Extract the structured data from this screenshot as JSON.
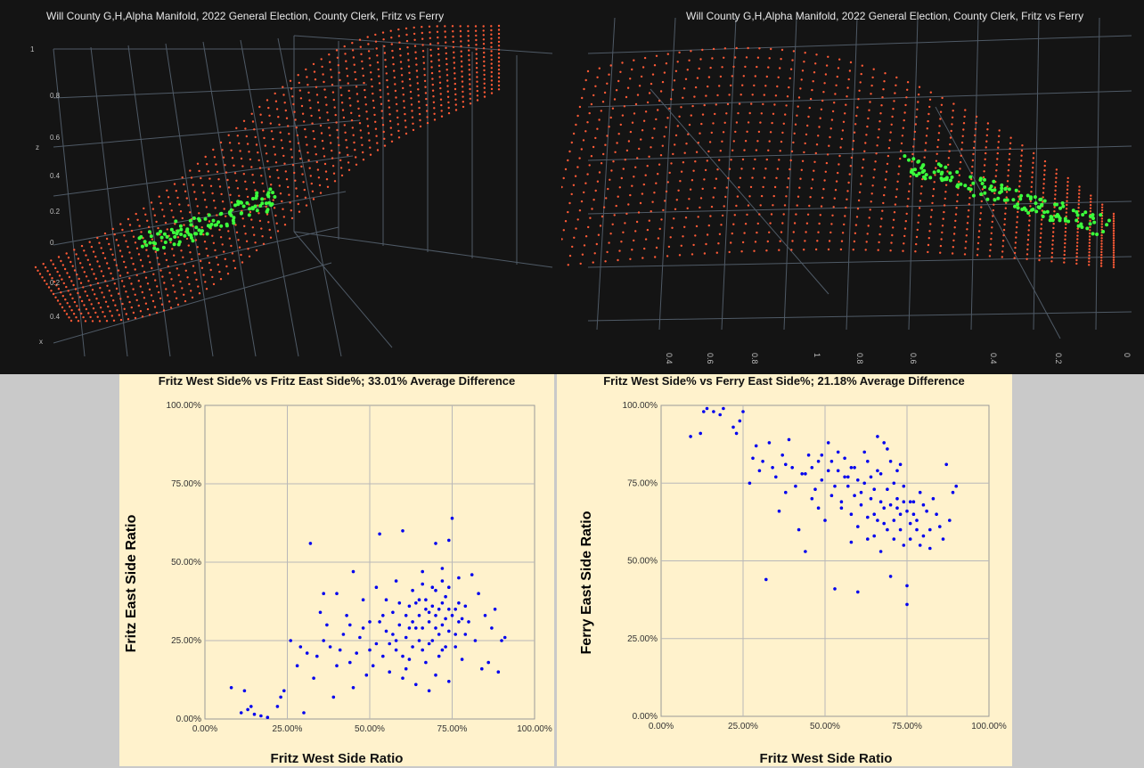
{
  "panels_3d": [
    {
      "title": "Will County G,H,Alpha Manifold, 2022 General Election, County Clerk, Fritz vs Ferry",
      "axis_ticks": [
        "1",
        "0.8",
        "0.6",
        "0.4",
        "0.2",
        "0",
        "0.2",
        "0.4"
      ],
      "axis_letters": [
        "z",
        "x"
      ],
      "colors": {
        "surface": "#ff5a36",
        "points": "#3cff3c",
        "grid": "#4f5a66",
        "background": "#141414"
      }
    },
    {
      "title": "Will County G,H,Alpha Manifold, 2022 General Election, County Clerk, Fritz vs Ferry",
      "axis_ticks": [
        "0.4",
        "0.6",
        "0.8",
        "1",
        "0.8",
        "0.6",
        "0.4",
        "0.2",
        "0"
      ],
      "colors": {
        "surface": "#ff5a36",
        "points": "#3cff3c",
        "grid": "#4f5a66",
        "background": "#141414"
      }
    }
  ],
  "chart_data": [
    {
      "type": "scatter",
      "title": "Fritz West Side% vs Fritz East Side%; 33.01% Average Difference",
      "xlabel": "Fritz West Side Ratio",
      "ylabel": "Fritz  East Side  Ratio",
      "x_ticks": [
        "0.00%",
        "25.00%",
        "50.00%",
        "75.00%",
        "100.00%"
      ],
      "y_ticks": [
        "0.00%",
        "25.00%",
        "50.00%",
        "75.00%",
        "100.00%"
      ],
      "xlim": [
        0,
        100
      ],
      "ylim": [
        0,
        100
      ],
      "grid": true,
      "marker_color": "#0000ee",
      "background": "#fff2cc",
      "points": [
        [
          8,
          10
        ],
        [
          11,
          2
        ],
        [
          12,
          9
        ],
        [
          13,
          3
        ],
        [
          14,
          4
        ],
        [
          15,
          1.5
        ],
        [
          17,
          1
        ],
        [
          19,
          0.5
        ],
        [
          22,
          4
        ],
        [
          23,
          7
        ],
        [
          24,
          9
        ],
        [
          26,
          25
        ],
        [
          28,
          17
        ],
        [
          29,
          23
        ],
        [
          30,
          2
        ],
        [
          31,
          21
        ],
        [
          32,
          56
        ],
        [
          33,
          13
        ],
        [
          34,
          20
        ],
        [
          35,
          34
        ],
        [
          36,
          25
        ],
        [
          37,
          30
        ],
        [
          38,
          23
        ],
        [
          39,
          7
        ],
        [
          40,
          40
        ],
        [
          40,
          17
        ],
        [
          41,
          22
        ],
        [
          42,
          27
        ],
        [
          43,
          33
        ],
        [
          44,
          18
        ],
        [
          45,
          47
        ],
        [
          45,
          10
        ],
        [
          46,
          21
        ],
        [
          47,
          26
        ],
        [
          48,
          38
        ],
        [
          49,
          14
        ],
        [
          50,
          31
        ],
        [
          51,
          17
        ],
        [
          52,
          24
        ],
        [
          52,
          42
        ],
        [
          53,
          59
        ],
        [
          54,
          20
        ],
        [
          55,
          28
        ],
        [
          55,
          38
        ],
        [
          56,
          15
        ],
        [
          57,
          34
        ],
        [
          58,
          22
        ],
        [
          58,
          44
        ],
        [
          59,
          30
        ],
        [
          60,
          60
        ],
        [
          60,
          13
        ],
        [
          61,
          26
        ],
        [
          62,
          36
        ],
        [
          62,
          19
        ],
        [
          63,
          41
        ],
        [
          64,
          29
        ],
        [
          64,
          11
        ],
        [
          65,
          33
        ],
        [
          66,
          22
        ],
        [
          66,
          47
        ],
        [
          67,
          18
        ],
        [
          67,
          38
        ],
        [
          68,
          31
        ],
        [
          68,
          9
        ],
        [
          69,
          42
        ],
        [
          69,
          25
        ],
        [
          70,
          56
        ],
        [
          70,
          14
        ],
        [
          71,
          35
        ],
        [
          71,
          20
        ],
        [
          72,
          48
        ],
        [
          72,
          30
        ],
        [
          73,
          23
        ],
        [
          73,
          39
        ],
        [
          74,
          57
        ],
        [
          74,
          12
        ],
        [
          75,
          33
        ],
        [
          75,
          64
        ],
        [
          76,
          27
        ],
        [
          77,
          45
        ],
        [
          77,
          37
        ],
        [
          78,
          19
        ],
        [
          79,
          36
        ],
        [
          80,
          31
        ],
        [
          81,
          46
        ],
        [
          82,
          25
        ],
        [
          83,
          40
        ],
        [
          84,
          16
        ],
        [
          85,
          33
        ],
        [
          86,
          18
        ],
        [
          87,
          29
        ],
        [
          88,
          35
        ],
        [
          89,
          15
        ],
        [
          90,
          25
        ],
        [
          91,
          26
        ],
        [
          36,
          40
        ],
        [
          44,
          30
        ],
        [
          48,
          29
        ],
        [
          53,
          31
        ],
        [
          57,
          27
        ],
        [
          61,
          33
        ],
        [
          63,
          23
        ],
        [
          65,
          38
        ],
        [
          66,
          29
        ],
        [
          67,
          35
        ],
        [
          69,
          36
        ],
        [
          70,
          33
        ],
        [
          71,
          27
        ],
        [
          72,
          37
        ],
        [
          73,
          32
        ],
        [
          74,
          28
        ],
        [
          76,
          35
        ],
        [
          78,
          32
        ],
        [
          79,
          27
        ],
        [
          58,
          25
        ],
        [
          60,
          20
        ],
        [
          62,
          29
        ],
        [
          64,
          37
        ],
        [
          68,
          24
        ],
        [
          70,
          41
        ],
        [
          72,
          22
        ],
        [
          74,
          42
        ],
        [
          76,
          23
        ],
        [
          77,
          31
        ],
        [
          50,
          22
        ],
        [
          54,
          33
        ],
        [
          56,
          24
        ],
        [
          59,
          37
        ],
        [
          61,
          16
        ],
        [
          63,
          31
        ],
        [
          65,
          25
        ],
        [
          66,
          43
        ],
        [
          68,
          34
        ],
        [
          70,
          29
        ],
        [
          72,
          44
        ],
        [
          74,
          35
        ]
      ]
    },
    {
      "type": "scatter",
      "title": "Fritz West Side% vs Ferry East Side%; 21.18% Average Difference",
      "xlabel": "Fritz West Side Ratio",
      "ylabel": "Ferry East  Side  Ratio",
      "x_ticks": [
        "0.00%",
        "25.00%",
        "50.00%",
        "75.00%",
        "100.00%"
      ],
      "y_ticks": [
        "0.00%",
        "25.00%",
        "50.00%",
        "75.00%",
        "100.00%"
      ],
      "xlim": [
        0,
        100
      ],
      "ylim": [
        0,
        100
      ],
      "grid": true,
      "marker_color": "#0000ee",
      "background": "#fff2cc",
      "points": [
        [
          9,
          90
        ],
        [
          12,
          91
        ],
        [
          13,
          98
        ],
        [
          14,
          99
        ],
        [
          16,
          98
        ],
        [
          18,
          97
        ],
        [
          19,
          99
        ],
        [
          22,
          93
        ],
        [
          23,
          91
        ],
        [
          24,
          95
        ],
        [
          25,
          98
        ],
        [
          27,
          75
        ],
        [
          28,
          83
        ],
        [
          29,
          87
        ],
        [
          30,
          79
        ],
        [
          31,
          82
        ],
        [
          32,
          44
        ],
        [
          33,
          88
        ],
        [
          34,
          80
        ],
        [
          35,
          77
        ],
        [
          36,
          66
        ],
        [
          37,
          84
        ],
        [
          38,
          72
        ],
        [
          39,
          89
        ],
        [
          40,
          80
        ],
        [
          41,
          74
        ],
        [
          42,
          60
        ],
        [
          43,
          78
        ],
        [
          44,
          53
        ],
        [
          45,
          84
        ],
        [
          46,
          70
        ],
        [
          47,
          73
        ],
        [
          48,
          82
        ],
        [
          49,
          76
        ],
        [
          50,
          63
        ],
        [
          51,
          88
        ],
        [
          52,
          71
        ],
        [
          53,
          41
        ],
        [
          54,
          79
        ],
        [
          55,
          67
        ],
        [
          56,
          83
        ],
        [
          57,
          74
        ],
        [
          58,
          56
        ],
        [
          59,
          80
        ],
        [
          60,
          40
        ],
        [
          61,
          72
        ],
        [
          62,
          85
        ],
        [
          63,
          64
        ],
        [
          64,
          77
        ],
        [
          65,
          58
        ],
        [
          66,
          90
        ],
        [
          67,
          69
        ],
        [
          68,
          62
        ],
        [
          69,
          86
        ],
        [
          70,
          45
        ],
        [
          71,
          75
        ],
        [
          72,
          67
        ],
        [
          73,
          81
        ],
        [
          74,
          55
        ],
        [
          75,
          42
        ],
        [
          75,
          36
        ],
        [
          76,
          69
        ],
        [
          77,
          65
        ],
        [
          78,
          60
        ],
        [
          79,
          72
        ],
        [
          80,
          58
        ],
        [
          81,
          66
        ],
        [
          82,
          54
        ],
        [
          83,
          70
        ],
        [
          84,
          65
        ],
        [
          85,
          61
        ],
        [
          86,
          57
        ],
        [
          87,
          81
        ],
        [
          88,
          63
        ],
        [
          89,
          72
        ],
        [
          90,
          74
        ],
        [
          38,
          81
        ],
        [
          44,
          78
        ],
        [
          48,
          67
        ],
        [
          51,
          79
        ],
        [
          53,
          74
        ],
        [
          55,
          69
        ],
        [
          57,
          77
        ],
        [
          59,
          71
        ],
        [
          61,
          68
        ],
        [
          62,
          75
        ],
        [
          64,
          70
        ],
        [
          65,
          73
        ],
        [
          66,
          63
        ],
        [
          67,
          78
        ],
        [
          68,
          67
        ],
        [
          69,
          73
        ],
        [
          70,
          68
        ],
        [
          71,
          63
        ],
        [
          72,
          70
        ],
        [
          73,
          65
        ],
        [
          74,
          69
        ],
        [
          75,
          66
        ],
        [
          76,
          62
        ],
        [
          77,
          69
        ],
        [
          46,
          80
        ],
        [
          49,
          84
        ],
        [
          52,
          82
        ],
        [
          54,
          85
        ],
        [
          56,
          77
        ],
        [
          58,
          80
        ],
        [
          60,
          76
        ],
        [
          63,
          82
        ],
        [
          66,
          79
        ],
        [
          68,
          88
        ],
        [
          70,
          82
        ],
        [
          72,
          79
        ],
        [
          74,
          74
        ],
        [
          78,
          63
        ],
        [
          80,
          68
        ],
        [
          82,
          60
        ],
        [
          58,
          65
        ],
        [
          60,
          61
        ],
        [
          63,
          57
        ],
        [
          65,
          65
        ],
        [
          67,
          53
        ],
        [
          69,
          60
        ],
        [
          71,
          57
        ],
        [
          73,
          60
        ],
        [
          76,
          57
        ],
        [
          79,
          55
        ]
      ]
    }
  ]
}
